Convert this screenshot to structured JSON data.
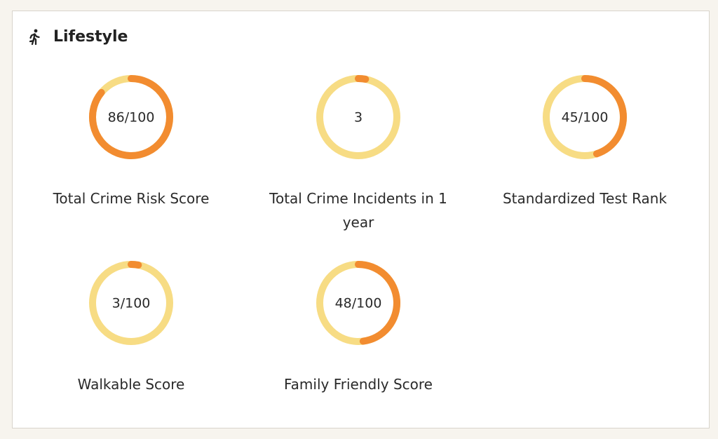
{
  "header": {
    "title": "Lifestyle"
  },
  "ring_range": [
    0,
    100
  ],
  "gauges": [
    {
      "label": "Total Crime Risk Score",
      "value_label": "86/100",
      "value": 86
    },
    {
      "label": "Total Crime Incidents in 1 year",
      "value_label": "3",
      "value": 3
    },
    {
      "label": "Standardized Test Rank",
      "value_label": "45/100",
      "value": 45
    },
    {
      "label": "Walkable Score",
      "value_label": "3/100",
      "value": 3
    },
    {
      "label": "Family Friendly Score",
      "value_label": "48/100",
      "value": 48
    }
  ],
  "colors": {
    "track": "#f7dc84",
    "fill": "#f28c30"
  }
}
